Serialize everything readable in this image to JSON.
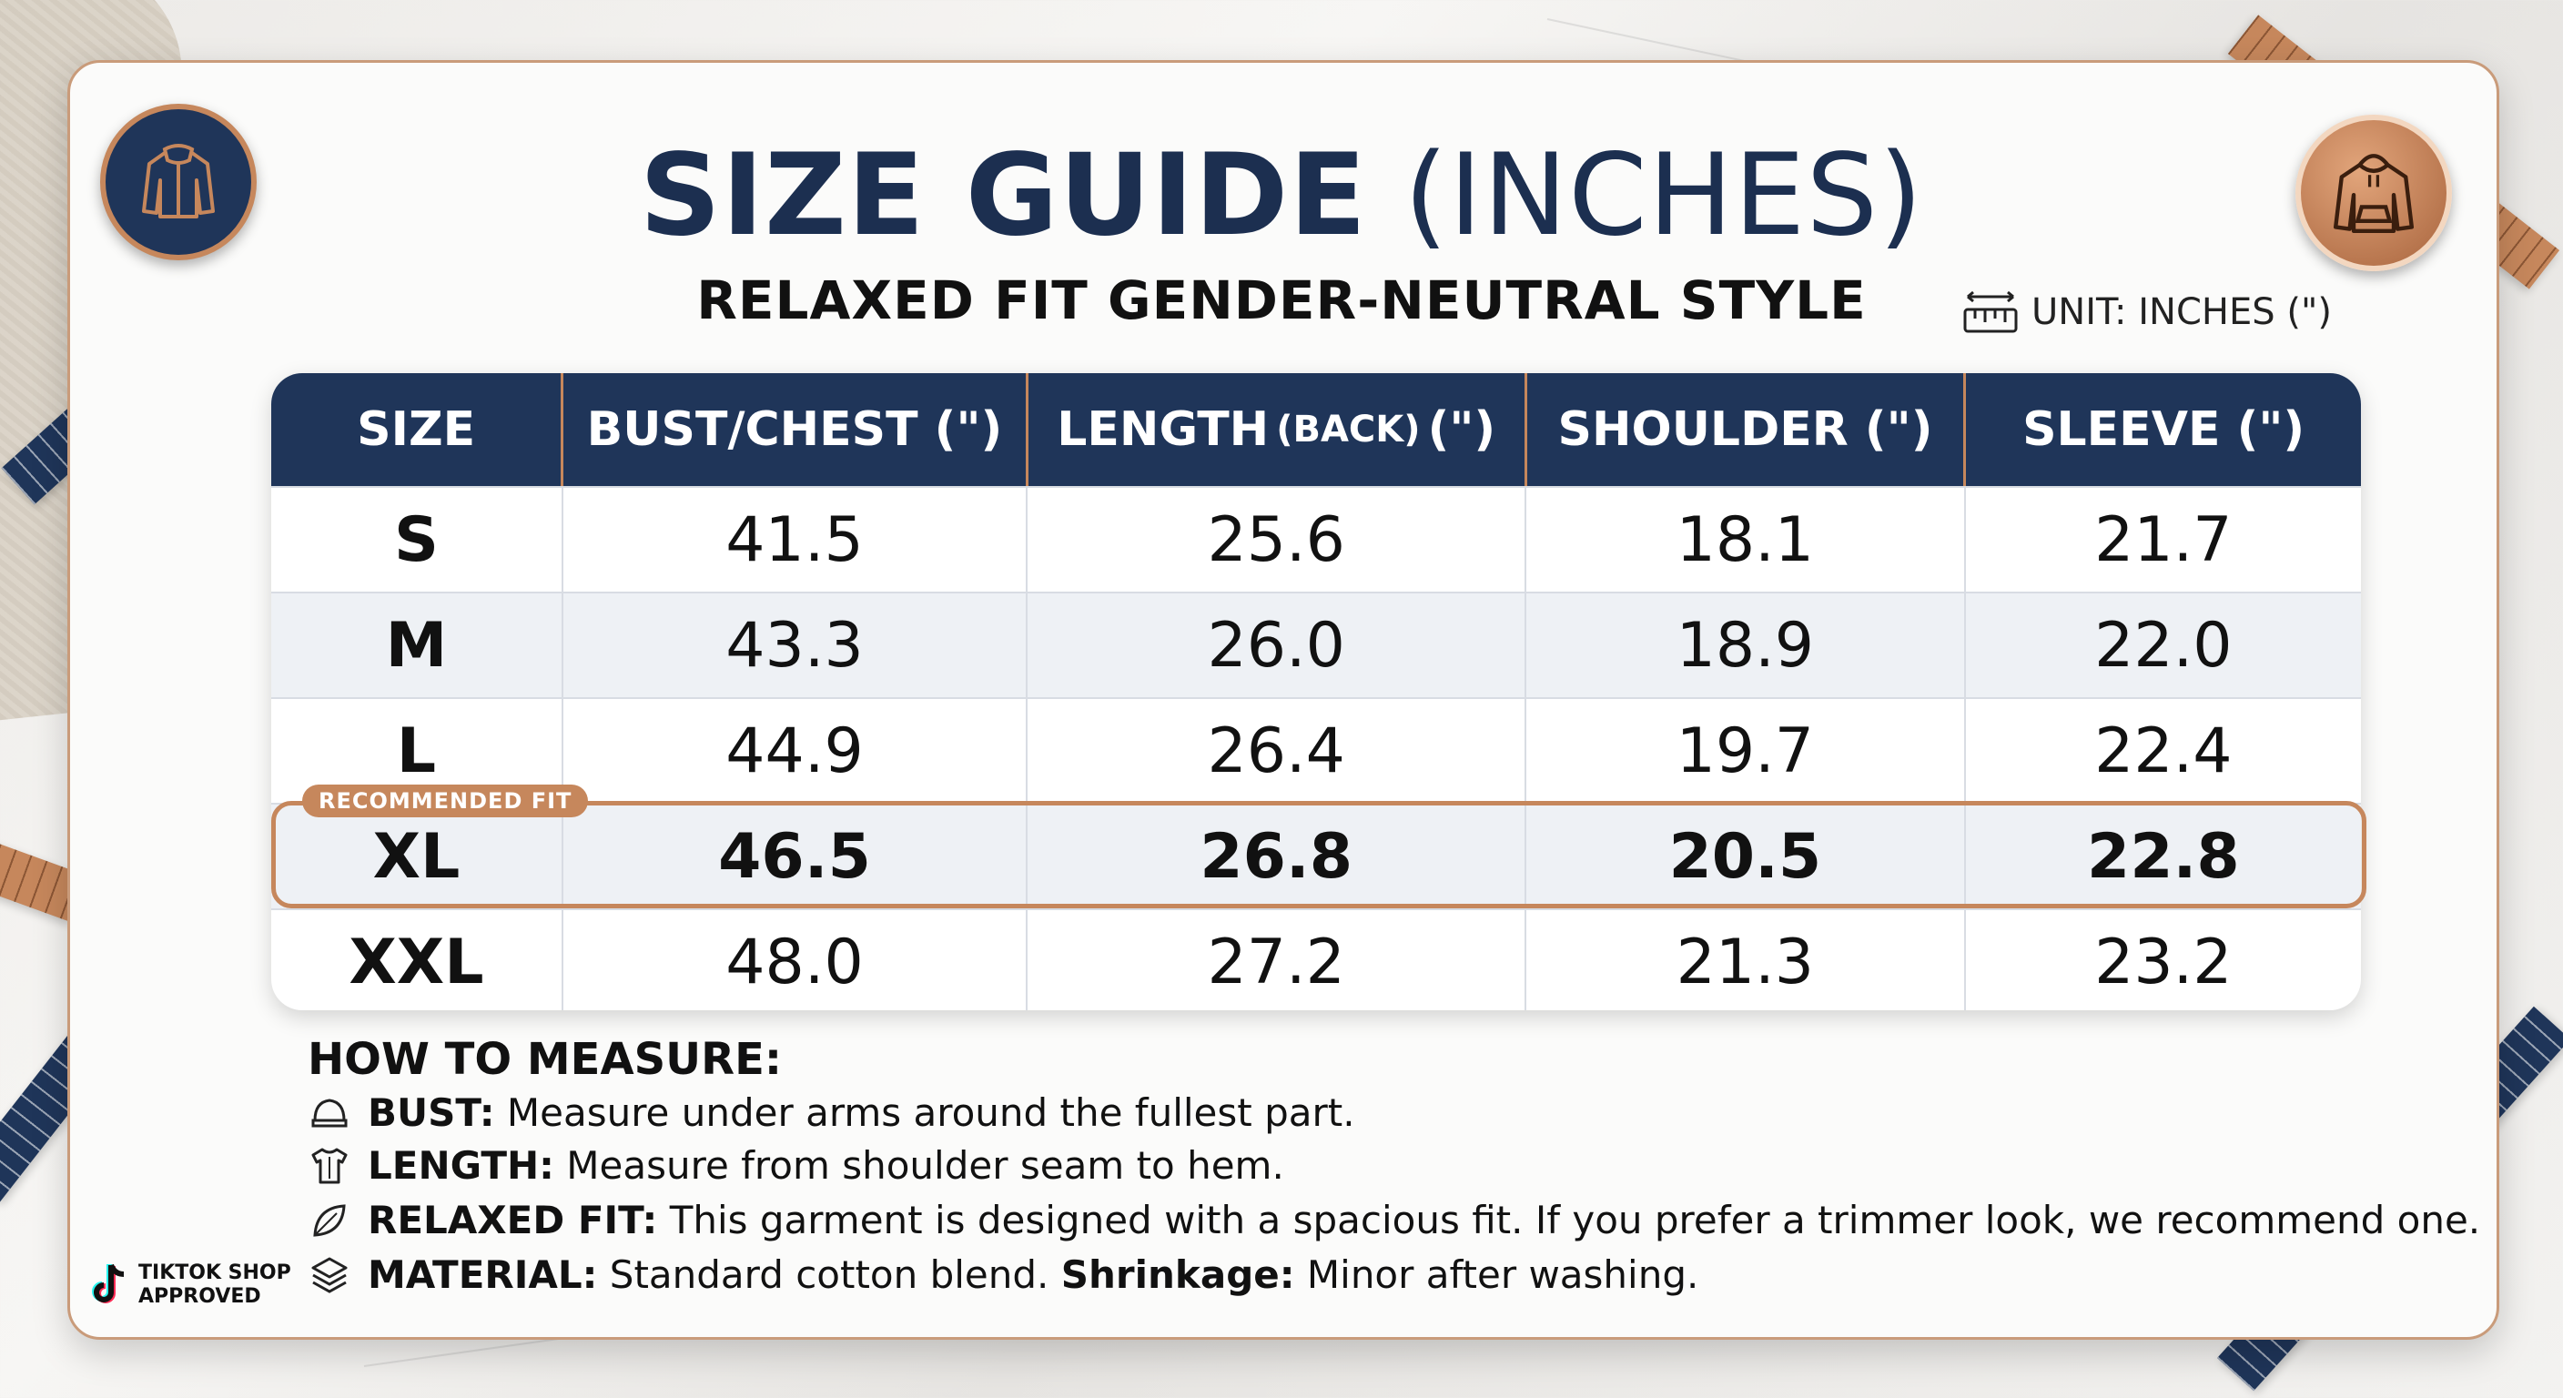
{
  "title": {
    "bold": "SIZE GUIDE",
    "light": "(INCHES)"
  },
  "subtitle": "RELAXED FIT GENDER-NEUTRAL STYLE",
  "unit_label": "UNIT: INCHES (\")",
  "table": {
    "headers": [
      {
        "text": "SIZE"
      },
      {
        "text": "BUST/CHEST (\")"
      },
      {
        "main": "LENGTH",
        "small": "(BACK)",
        "suffix": "(\")"
      },
      {
        "text": "SHOULDER (\")"
      },
      {
        "text": "SLEEVE (\")"
      }
    ],
    "rows": [
      [
        "S",
        "41.5",
        "25.6",
        "18.1",
        "21.7"
      ],
      [
        "M",
        "43.3",
        "26.0",
        "18.9",
        "22.0"
      ],
      [
        "L",
        "44.9",
        "26.4",
        "19.7",
        "22.4"
      ],
      [
        "XL",
        "46.5",
        "26.8",
        "20.5",
        "22.8"
      ],
      [
        "XXL",
        "48.0",
        "27.2",
        "21.3",
        "23.2"
      ]
    ],
    "recommended_tag": "RECOMMENDED FIT"
  },
  "how_to_measure": {
    "title": "HOW TO MEASURE:",
    "items": [
      {
        "icon": "bust-icon",
        "label": "BUST:",
        "text": "Measure under arms around the fullest part."
      },
      {
        "icon": "shirt-length-icon",
        "label": "LENGTH:",
        "text": "Measure from shoulder seam to hem."
      },
      {
        "icon": "leaf-icon",
        "label": "RELAXED FIT:",
        "text": "This garment is designed with a spacious fit. If you prefer a trimmer look, we recommend one."
      },
      {
        "icon": "layers-icon",
        "label": "MATERIAL:",
        "text": "Standard cotton blend.",
        "label2": "Shrinkage:",
        "text2": "Minor after washing."
      }
    ]
  },
  "tiktok": {
    "line1": "TIKTOK SHOP",
    "line2": "APPROVED"
  },
  "colors": {
    "navy": "#1f3559",
    "copper": "#c6875c",
    "background": "#fbfbfa"
  }
}
